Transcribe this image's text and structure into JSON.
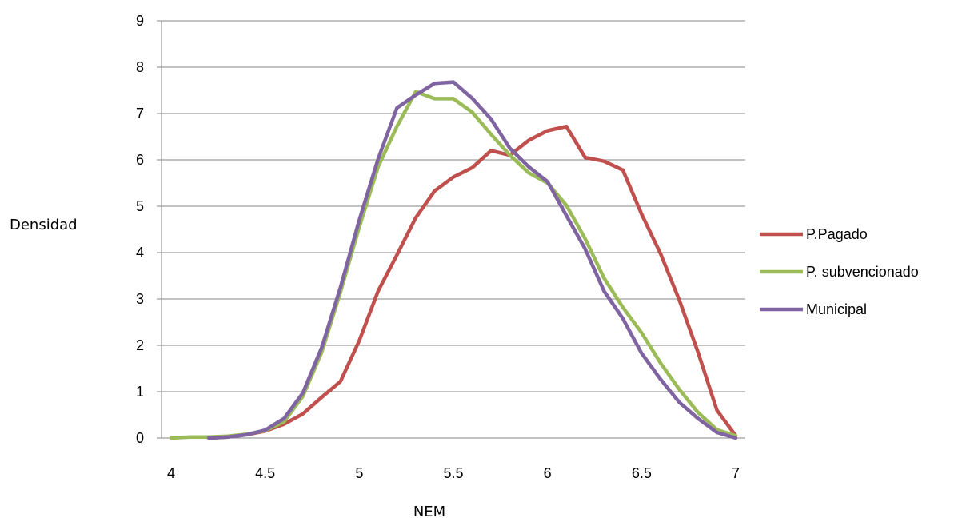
{
  "chart_data": {
    "type": "line",
    "xlabel": "NEM",
    "ylabel": "Densidad",
    "xlim": [
      4,
      7
    ],
    "ylim": [
      0,
      9
    ],
    "xticks": [
      "4",
      "4.5",
      "5",
      "5.5",
      "6",
      "6.5",
      "7"
    ],
    "yticks": [
      "0",
      "1",
      "2",
      "3",
      "4",
      "5",
      "6",
      "7",
      "8",
      "9"
    ],
    "grid": "horizontal",
    "legend": "right",
    "series": [
      {
        "name": "P.Pagado",
        "color": "#C0504D",
        "points": [
          [
            4.2,
            0.0
          ],
          [
            4.3,
            0.02
          ],
          [
            4.4,
            0.07
          ],
          [
            4.5,
            0.15
          ],
          [
            4.6,
            0.3
          ],
          [
            4.7,
            0.52
          ],
          [
            4.8,
            0.88
          ],
          [
            4.9,
            1.22
          ],
          [
            5.0,
            2.1
          ],
          [
            5.1,
            3.17
          ],
          [
            5.2,
            3.95
          ],
          [
            5.3,
            4.75
          ],
          [
            5.4,
            5.33
          ],
          [
            5.5,
            5.63
          ],
          [
            5.6,
            5.83
          ],
          [
            5.7,
            6.2
          ],
          [
            5.8,
            6.1
          ],
          [
            5.9,
            6.42
          ],
          [
            6.0,
            6.63
          ],
          [
            6.1,
            6.72
          ],
          [
            6.2,
            6.05
          ],
          [
            6.3,
            5.97
          ],
          [
            6.4,
            5.78
          ],
          [
            6.5,
            4.83
          ],
          [
            6.6,
            3.98
          ],
          [
            6.7,
            2.98
          ],
          [
            6.8,
            1.85
          ],
          [
            6.9,
            0.6
          ],
          [
            7.0,
            0.05
          ]
        ]
      },
      {
        "name": "P. subvencionado",
        "color": "#9BBB59",
        "points": [
          [
            4.0,
            0.0
          ],
          [
            4.1,
            0.02
          ],
          [
            4.2,
            0.02
          ],
          [
            4.3,
            0.04
          ],
          [
            4.4,
            0.08
          ],
          [
            4.5,
            0.16
          ],
          [
            4.6,
            0.35
          ],
          [
            4.7,
            0.9
          ],
          [
            4.8,
            1.85
          ],
          [
            4.9,
            3.15
          ],
          [
            5.0,
            4.55
          ],
          [
            5.1,
            5.85
          ],
          [
            5.2,
            6.72
          ],
          [
            5.3,
            7.47
          ],
          [
            5.4,
            7.32
          ],
          [
            5.5,
            7.32
          ],
          [
            5.6,
            7.03
          ],
          [
            5.7,
            6.55
          ],
          [
            5.8,
            6.1
          ],
          [
            5.9,
            5.72
          ],
          [
            6.0,
            5.5
          ],
          [
            6.1,
            5.02
          ],
          [
            6.2,
            4.3
          ],
          [
            6.3,
            3.45
          ],
          [
            6.4,
            2.82
          ],
          [
            6.5,
            2.27
          ],
          [
            6.6,
            1.62
          ],
          [
            6.7,
            1.05
          ],
          [
            6.8,
            0.55
          ],
          [
            6.9,
            0.18
          ],
          [
            7.0,
            0.05
          ]
        ]
      },
      {
        "name": "Municipal",
        "color": "#8064A2",
        "points": [
          [
            4.2,
            0.0
          ],
          [
            4.3,
            0.02
          ],
          [
            4.4,
            0.07
          ],
          [
            4.5,
            0.17
          ],
          [
            4.6,
            0.42
          ],
          [
            4.7,
            0.97
          ],
          [
            4.8,
            1.95
          ],
          [
            4.9,
            3.25
          ],
          [
            5.0,
            4.7
          ],
          [
            5.1,
            6.02
          ],
          [
            5.2,
            7.12
          ],
          [
            5.3,
            7.4
          ],
          [
            5.4,
            7.65
          ],
          [
            5.5,
            7.68
          ],
          [
            5.6,
            7.33
          ],
          [
            5.7,
            6.88
          ],
          [
            5.8,
            6.25
          ],
          [
            5.9,
            5.85
          ],
          [
            6.0,
            5.53
          ],
          [
            6.1,
            4.8
          ],
          [
            6.2,
            4.08
          ],
          [
            6.3,
            3.17
          ],
          [
            6.4,
            2.58
          ],
          [
            6.5,
            1.83
          ],
          [
            6.6,
            1.27
          ],
          [
            6.7,
            0.77
          ],
          [
            6.8,
            0.42
          ],
          [
            6.9,
            0.12
          ],
          [
            7.0,
            0.0
          ]
        ]
      }
    ]
  }
}
